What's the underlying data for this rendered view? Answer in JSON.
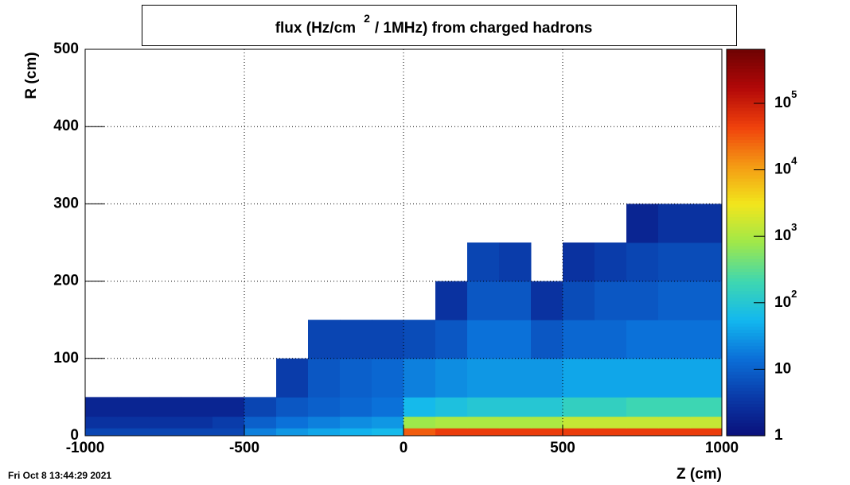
{
  "chart_data": {
    "type": "heatmap",
    "title": [
      "flux (Hz/cm",
      "2",
      "/ 1MHz) from   charged hadrons"
    ],
    "x_label": "Z (cm)",
    "y_label": "R (cm)",
    "date_stamp": "Fri Oct  8 13:44:29 2021",
    "xbins": [
      -1000,
      -900,
      -800,
      -700,
      -600,
      -500,
      -400,
      -300,
      -200,
      -100,
      0,
      100,
      200,
      300,
      400,
      500,
      600,
      700,
      800,
      900,
      1000
    ],
    "ybins": [
      0,
      10,
      25,
      50,
      100,
      150,
      200,
      250,
      300
    ],
    "values": [
      [
        5,
        5,
        5,
        5,
        5,
        20,
        30,
        40,
        50,
        60,
        30000,
        50000,
        50000,
        50000,
        50000,
        50000,
        50000,
        50000,
        50000,
        50000
      ],
      [
        3,
        3,
        3,
        3,
        4,
        10,
        15,
        20,
        25,
        30,
        800,
        1000,
        1000,
        1000,
        1000,
        1500,
        1500,
        1500,
        1500,
        1500
      ],
      [
        2,
        2,
        2,
        2,
        2,
        5,
        8,
        10,
        12,
        15,
        60,
        80,
        100,
        100,
        100,
        150,
        150,
        200,
        200,
        200
      ],
      [
        null,
        null,
        null,
        null,
        null,
        null,
        4,
        8,
        10,
        12,
        20,
        25,
        30,
        30,
        30,
        40,
        40,
        40,
        40,
        40
      ],
      [
        null,
        null,
        null,
        null,
        null,
        null,
        null,
        5,
        5,
        5,
        6,
        8,
        15,
        15,
        8,
        12,
        12,
        15,
        15,
        15
      ],
      [
        null,
        null,
        null,
        null,
        null,
        null,
        null,
        null,
        null,
        null,
        null,
        3,
        8,
        8,
        3,
        6,
        8,
        8,
        10,
        10
      ],
      [
        null,
        null,
        null,
        null,
        null,
        null,
        null,
        null,
        null,
        null,
        null,
        null,
        5,
        4,
        null,
        3,
        4,
        5,
        6,
        6
      ],
      [
        null,
        null,
        null,
        null,
        null,
        null,
        null,
        null,
        null,
        null,
        null,
        null,
        null,
        null,
        null,
        null,
        null,
        2,
        3,
        3
      ]
    ],
    "xlim": [
      -1000,
      1000
    ],
    "xticks": [
      -1000,
      -500,
      0,
      500,
      1000
    ],
    "ylim": [
      0,
      500
    ],
    "yticks": [
      0,
      100,
      200,
      300,
      400,
      500
    ],
    "zlim": [
      1,
      650000
    ],
    "zlog": true,
    "zticks": [
      1,
      10,
      {
        "value": 100,
        "label": "10",
        "exponent": "2"
      },
      {
        "value": 1000,
        "label": "10",
        "exponent": "3"
      },
      {
        "value": 10000,
        "label": "10",
        "exponent": "4"
      },
      {
        "value": 100000,
        "label": "10",
        "exponent": "5"
      }
    ],
    "palette": [
      "#0a0f7a",
      "#0a3aa8",
      "#0b6fd8",
      "#12b8ef",
      "#3fd7b0",
      "#9fe84a",
      "#f2e61c",
      "#f49a14",
      "#f0410c",
      "#b20808",
      "#6e0202"
    ],
    "grid": true
  }
}
